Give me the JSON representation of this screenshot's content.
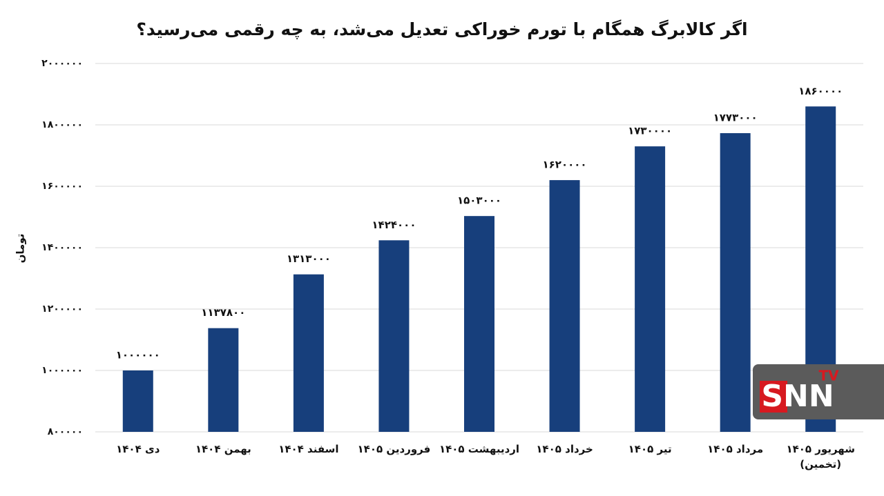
{
  "chart_data": {
    "type": "bar",
    "title": "اگر کالابرگ همگام با تورم خوراکی تعدیل می‌شد، به چه رقمی می‌رسید؟",
    "y_label": "تومان",
    "categories": [
      "دی ۱۴۰۴",
      "بهمن ۱۴۰۴",
      "اسفند ۱۴۰۴",
      "فروردین ۱۴۰۵",
      "اردیبهشت ۱۴۰۵",
      "خرداد ۱۴۰۵",
      "تیر ۱۴۰۵",
      "مرداد ۱۴۰۵",
      "شهریور ۱۴۰۵ (تخمین)"
    ],
    "values": [
      1000000,
      1137800,
      1313000,
      1424000,
      1503000,
      1620000,
      1730000,
      1773000,
      1860000
    ],
    "value_labels": [
      "۱۰۰۰۰۰۰",
      "۱۱۳۷۸۰۰",
      "۱۳۱۳۰۰۰",
      "۱۴۲۴۰۰۰",
      "۱۵۰۳۰۰۰",
      "۱۶۲۰۰۰۰",
      "۱۷۳۰۰۰۰",
      "۱۷۷۳۰۰۰",
      "۱۸۶۰۰۰۰"
    ],
    "color": "#173f7c",
    "ylim": [
      800000,
      2000000
    ],
    "yticks": [
      {
        "value": 800000,
        "label": "۸۰۰۰۰۰"
      },
      {
        "value": 1000000,
        "label": "۱۰۰۰۰۰۰"
      },
      {
        "value": 1200000,
        "label": "۱۲۰۰۰۰۰"
      },
      {
        "value": 1400000,
        "label": "۱۴۰۰۰۰۰"
      },
      {
        "value": 1600000,
        "label": "۱۶۰۰۰۰۰"
      },
      {
        "value": 1800000,
        "label": "۱۸۰۰۰۰۰"
      },
      {
        "value": 2000000,
        "label": "۲۰۰۰۰۰۰"
      }
    ],
    "grid": true
  },
  "watermark": {
    "text": "SNN",
    "sup": "TV"
  }
}
